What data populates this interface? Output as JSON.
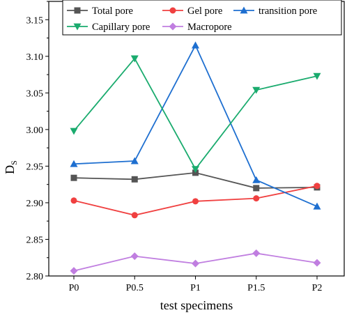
{
  "chart_data": {
    "type": "line",
    "categories": [
      "P0",
      "P0.5",
      "P1",
      "P1.5",
      "P2"
    ],
    "xlabel": "test specimens",
    "ylabel": "D",
    "ylabel_sub": "S",
    "ylim": [
      2.8,
      3.175
    ],
    "yticks": [
      "2.80",
      "2.85",
      "2.90",
      "2.95",
      "3.00",
      "3.05",
      "3.10",
      "3.15"
    ],
    "ytick_values": [
      2.8,
      2.85,
      2.9,
      2.95,
      3.0,
      3.05,
      3.1,
      3.15
    ],
    "grid": false,
    "legend_position": "top",
    "series": [
      {
        "name": "Total pore",
        "color": "#555555",
        "marker": "square",
        "values": [
          2.934,
          2.932,
          2.941,
          2.92,
          2.921
        ]
      },
      {
        "name": "Gel pore",
        "color": "#f04040",
        "marker": "circle",
        "values": [
          2.903,
          2.883,
          2.902,
          2.906,
          2.923
        ]
      },
      {
        "name": "transition pore",
        "color": "#1e6fd0",
        "marker": "triangle-up",
        "values": [
          2.953,
          2.957,
          3.115,
          2.931,
          2.895
        ]
      },
      {
        "name": "Capillary pore",
        "color": "#1aab6e",
        "marker": "triangle-down",
        "values": [
          2.998,
          3.097,
          2.946,
          3.054,
          3.073
        ]
      },
      {
        "name": "Macropore",
        "color": "#c07ee0",
        "marker": "diamond",
        "values": [
          2.807,
          2.827,
          2.817,
          2.831,
          2.818
        ]
      }
    ]
  }
}
